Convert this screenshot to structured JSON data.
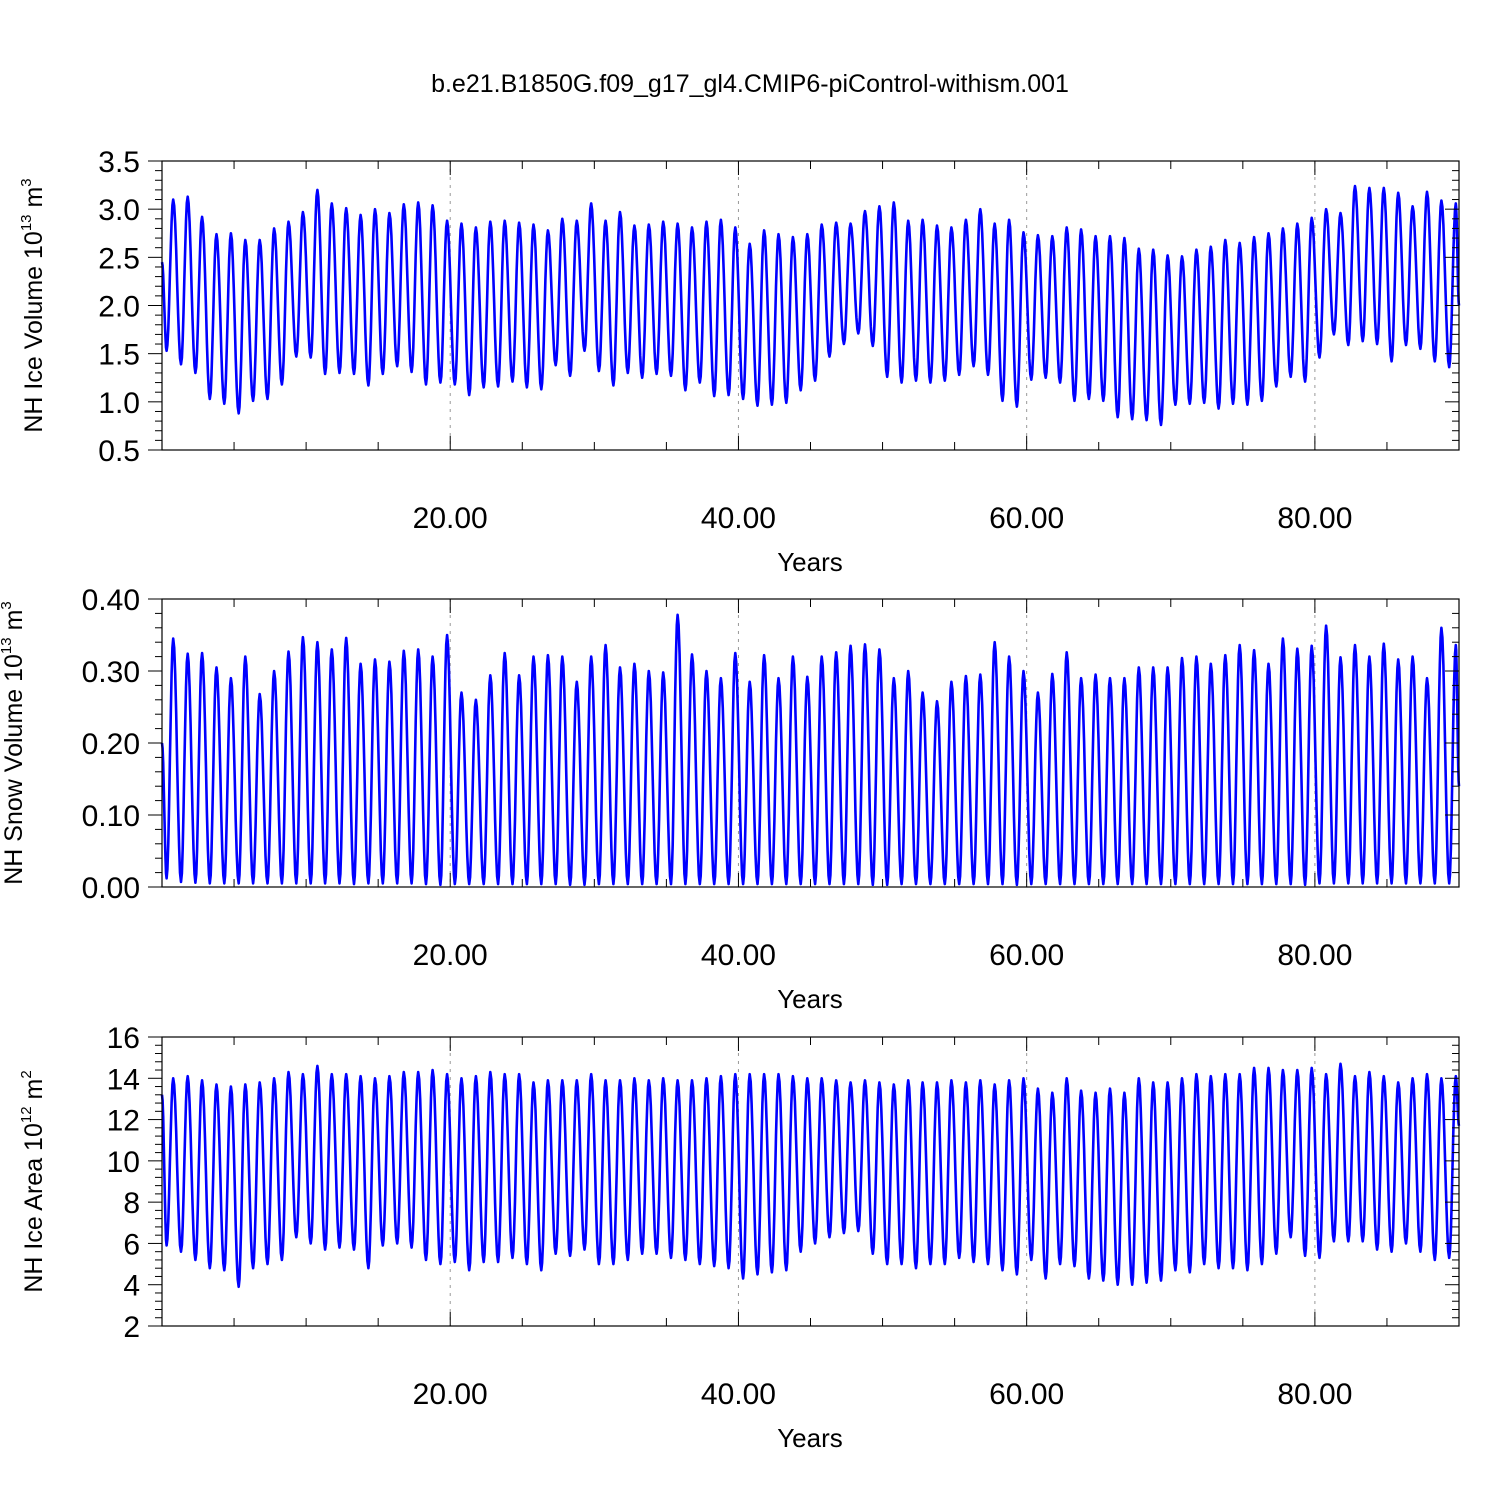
{
  "figure_title": "b.e21.B1850G.f09_g17_gl4.CMIP6-piControl-withism.001",
  "colors": {
    "line": "#0000ff",
    "axes": "#000000",
    "grid": "#999999"
  },
  "chart_data": [
    {
      "type": "line",
      "title": "",
      "xlabel": "Years",
      "ylabel": "NH Ice Volume 10",
      "ylabel_exp": "13",
      "ylabel_unit": " m",
      "ylabel_unit_exp": "3",
      "xlim": [
        0,
        90
      ],
      "ylim": [
        0.5,
        3.5
      ],
      "xticks": [
        20,
        40,
        60,
        80
      ],
      "xtick_labels": [
        "20.00",
        "40.00",
        "60.00",
        "80.00"
      ],
      "yticks": [
        0.5,
        1.0,
        1.5,
        2.0,
        2.5,
        3.0,
        3.5
      ],
      "ytick_labels": [
        "0.5",
        "1.0",
        "1.5",
        "2.0",
        "2.5",
        "3.0",
        "3.5"
      ],
      "grid": "vertical dashed at major x ticks",
      "seasonal_cycle": "annual",
      "series": [
        {
          "start": 2.45,
          "end": 2.0,
          "annual_max": [
            3.1,
            3.13,
            2.92,
            2.74,
            2.75,
            2.68,
            2.68,
            2.8,
            2.87,
            2.97,
            3.2,
            3.06,
            3.01,
            2.94,
            3.0,
            2.96,
            3.05,
            3.07,
            3.04,
            2.88,
            2.85,
            2.81,
            2.87,
            2.88,
            2.86,
            2.84,
            2.78,
            2.9,
            2.88,
            3.06,
            2.88,
            2.97,
            2.83,
            2.84,
            2.87,
            2.85,
            2.81,
            2.87,
            2.89,
            2.81,
            2.64,
            2.78,
            2.74,
            2.71,
            2.74,
            2.84,
            2.86,
            2.85,
            2.98,
            3.03,
            3.07,
            2.88,
            2.89,
            2.83,
            2.81,
            2.89,
            3.0,
            2.85,
            2.89,
            2.76,
            2.73,
            2.72,
            2.81,
            2.79,
            2.72,
            2.72,
            2.7,
            2.59,
            2.58,
            2.52,
            2.51,
            2.58,
            2.61,
            2.68,
            2.65,
            2.71,
            2.75,
            2.8,
            2.85,
            2.91,
            3.0,
            2.96,
            3.24,
            3.22,
            3.22,
            3.17,
            3.03,
            3.18,
            3.09,
            3.06
          ],
          "annual_min": [
            1.53,
            1.39,
            1.3,
            1.03,
            0.98,
            0.88,
            1.01,
            1.03,
            1.18,
            1.47,
            1.46,
            1.29,
            1.3,
            1.29,
            1.17,
            1.29,
            1.37,
            1.31,
            1.18,
            1.2,
            1.18,
            1.07,
            1.15,
            1.16,
            1.21,
            1.15,
            1.13,
            1.38,
            1.27,
            1.53,
            1.32,
            1.17,
            1.3,
            1.25,
            1.29,
            1.27,
            1.12,
            1.2,
            1.06,
            1.07,
            1.03,
            0.96,
            0.97,
            0.99,
            1.12,
            1.22,
            1.47,
            1.6,
            1.71,
            1.58,
            1.26,
            1.2,
            1.22,
            1.2,
            1.22,
            1.28,
            1.37,
            1.28,
            1.01,
            0.95,
            1.23,
            1.25,
            1.2,
            1.01,
            1.03,
            1.01,
            0.84,
            0.82,
            0.81,
            0.76,
            0.97,
            0.98,
            0.99,
            0.93,
            0.98,
            0.97,
            1.01,
            1.16,
            1.26,
            1.21,
            1.46,
            1.7,
            1.59,
            1.63,
            1.6,
            1.42,
            1.59,
            1.55,
            1.42,
            1.36
          ]
        }
      ]
    },
    {
      "type": "line",
      "title": "",
      "xlabel": "Years",
      "ylabel": "NH Snow Volume 10",
      "ylabel_exp": "13",
      "ylabel_unit": " m",
      "ylabel_unit_exp": "3",
      "xlim": [
        0,
        90
      ],
      "ylim": [
        0.0,
        0.4
      ],
      "xticks": [
        20,
        40,
        60,
        80
      ],
      "xtick_labels": [
        "20.00",
        "40.00",
        "60.00",
        "80.00"
      ],
      "yticks": [
        0.0,
        0.1,
        0.2,
        0.3,
        0.4
      ],
      "ytick_labels": [
        "0.00",
        "0.10",
        "0.20",
        "0.30",
        "0.40"
      ],
      "grid": "vertical dashed at major x ticks",
      "seasonal_cycle": "annual",
      "series": [
        {
          "start": 0.2,
          "end": 0.14,
          "annual_max": [
            0.345,
            0.324,
            0.325,
            0.305,
            0.29,
            0.32,
            0.268,
            0.3,
            0.327,
            0.347,
            0.34,
            0.33,
            0.346,
            0.31,
            0.316,
            0.313,
            0.328,
            0.33,
            0.32,
            0.35,
            0.27,
            0.26,
            0.294,
            0.325,
            0.294,
            0.32,
            0.322,
            0.32,
            0.285,
            0.32,
            0.336,
            0.305,
            0.31,
            0.3,
            0.298,
            0.378,
            0.323,
            0.3,
            0.29,
            0.325,
            0.285,
            0.322,
            0.29,
            0.32,
            0.292,
            0.32,
            0.326,
            0.335,
            0.337,
            0.33,
            0.29,
            0.3,
            0.27,
            0.258,
            0.285,
            0.293,
            0.295,
            0.34,
            0.32,
            0.3,
            0.27,
            0.296,
            0.326,
            0.29,
            0.295,
            0.29,
            0.29,
            0.305,
            0.305,
            0.305,
            0.318,
            0.32,
            0.31,
            0.322,
            0.336,
            0.329,
            0.31,
            0.345,
            0.331,
            0.335,
            0.363,
            0.319,
            0.336,
            0.32,
            0.338,
            0.316,
            0.32,
            0.29,
            0.36,
            0.336
          ],
          "annual_min": [
            0.012,
            0.007,
            0.006,
            0.005,
            0.005,
            0.005,
            0.005,
            0.005,
            0.005,
            0.005,
            0.005,
            0.005,
            0.005,
            0.004,
            0.005,
            0.005,
            0.005,
            0.005,
            0.004,
            0.003,
            0.004,
            0.004,
            0.004,
            0.004,
            0.004,
            0.004,
            0.004,
            0.004,
            0.003,
            0.003,
            0.004,
            0.004,
            0.004,
            0.004,
            0.004,
            0.004,
            0.004,
            0.004,
            0.004,
            0.004,
            0.004,
            0.004,
            0.004,
            0.004,
            0.004,
            0.004,
            0.004,
            0.004,
            0.004,
            0.003,
            0.003,
            0.004,
            0.004,
            0.004,
            0.004,
            0.004,
            0.004,
            0.004,
            0.004,
            0.003,
            0.004,
            0.004,
            0.004,
            0.004,
            0.004,
            0.004,
            0.004,
            0.004,
            0.004,
            0.004,
            0.004,
            0.004,
            0.004,
            0.004,
            0.004,
            0.004,
            0.004,
            0.004,
            0.004,
            0.003,
            0.005,
            0.005,
            0.005,
            0.005,
            0.005,
            0.005,
            0.005,
            0.005,
            0.005,
            0.005
          ]
        }
      ]
    },
    {
      "type": "line",
      "title": "",
      "xlabel": "Years",
      "ylabel": "NH Ice Area 10",
      "ylabel_exp": "12",
      "ylabel_unit": " m",
      "ylabel_unit_exp": "2",
      "xlim": [
        0,
        90
      ],
      "ylim": [
        2,
        16
      ],
      "xticks": [
        20,
        40,
        60,
        80
      ],
      "xtick_labels": [
        "20.00",
        "40.00",
        "60.00",
        "80.00"
      ],
      "yticks": [
        2,
        4,
        6,
        8,
        10,
        12,
        14,
        16
      ],
      "ytick_labels": [
        "2",
        "4",
        "6",
        "8",
        "10",
        "12",
        "14",
        "16"
      ],
      "grid": "vertical dashed at major x ticks",
      "seasonal_cycle": "annual",
      "series": [
        {
          "start": 13.2,
          "end": 11.7,
          "annual_max": [
            14.0,
            14.1,
            13.9,
            13.7,
            13.6,
            13.7,
            13.8,
            14.0,
            14.3,
            14.2,
            14.6,
            14.2,
            14.2,
            14.1,
            14.0,
            14.1,
            14.3,
            14.3,
            14.4,
            14.2,
            14.0,
            14.1,
            14.3,
            14.2,
            14.2,
            13.8,
            13.9,
            13.9,
            13.9,
            14.2,
            13.9,
            13.9,
            14.0,
            13.9,
            14.0,
            13.9,
            13.9,
            14.0,
            14.1,
            14.2,
            14.2,
            14.2,
            14.2,
            14.1,
            14.0,
            14.0,
            13.9,
            13.8,
            13.9,
            13.8,
            13.7,
            13.9,
            13.8,
            13.8,
            13.9,
            13.8,
            13.9,
            13.7,
            13.9,
            14.0,
            13.5,
            13.3,
            14.0,
            13.4,
            13.3,
            13.5,
            13.3,
            14.0,
            13.8,
            13.8,
            14.0,
            14.2,
            14.1,
            14.2,
            14.2,
            14.5,
            14.5,
            14.4,
            14.4,
            14.5,
            14.2,
            14.7,
            14.1,
            14.3,
            14.1,
            13.8,
            14.0,
            14.2,
            14.0,
            14.1
          ],
          "annual_min": [
            5.9,
            5.6,
            5.2,
            4.8,
            4.7,
            3.9,
            4.8,
            5.0,
            5.2,
            6.3,
            6.0,
            5.7,
            5.8,
            5.7,
            4.8,
            5.9,
            6.0,
            5.8,
            5.2,
            5.0,
            5.1,
            4.7,
            5.1,
            5.1,
            5.3,
            5.0,
            4.7,
            5.5,
            5.4,
            5.7,
            5.0,
            5.0,
            5.2,
            5.5,
            5.5,
            5.3,
            5.2,
            5.0,
            4.9,
            4.8,
            4.3,
            4.5,
            4.6,
            4.7,
            5.6,
            6.0,
            6.3,
            6.5,
            6.6,
            5.5,
            5.0,
            5.0,
            4.8,
            5.0,
            5.0,
            5.3,
            5.1,
            5.0,
            4.7,
            4.5,
            5.2,
            4.3,
            5.0,
            4.9,
            4.3,
            4.2,
            4.0,
            4.0,
            4.1,
            4.2,
            4.7,
            4.6,
            5.0,
            4.8,
            4.8,
            4.7,
            5.0,
            5.5,
            6.3,
            5.4,
            5.3,
            6.1,
            6.1,
            6.1,
            5.7,
            5.6,
            6.0,
            5.6,
            5.2,
            5.3
          ]
        }
      ]
    }
  ]
}
